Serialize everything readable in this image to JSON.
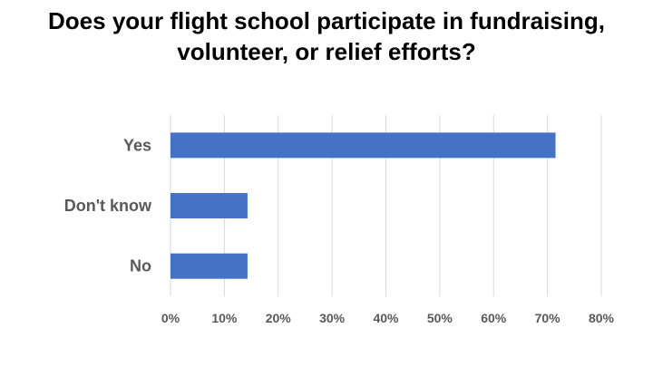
{
  "chart_data": {
    "type": "bar",
    "orientation": "horizontal",
    "title_lines": [
      "Does your flight school participate in fundraising,",
      "volunteer, or relief efforts?"
    ],
    "categories": [
      "Yes",
      "Don't know",
      "No"
    ],
    "values": [
      71.5,
      14.3,
      14.3
    ],
    "x_ticks": [
      "0%",
      "10%",
      "20%",
      "30%",
      "40%",
      "50%",
      "60%",
      "70%",
      "80%"
    ],
    "xlim": [
      0,
      80
    ],
    "xlabel": "",
    "ylabel": "",
    "grid": true,
    "legend": "none",
    "colors": {
      "bar": "#4472C4",
      "grid": "#D9D9D9",
      "text": "#595959",
      "title": "#000000"
    }
  }
}
